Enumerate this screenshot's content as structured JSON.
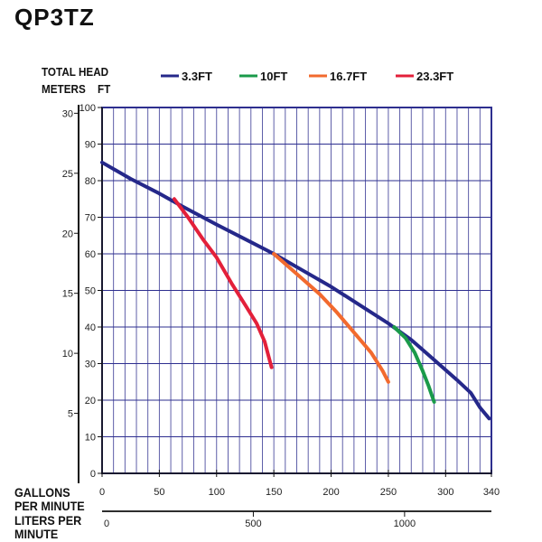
{
  "title": "QP3TZ",
  "chart_data": {
    "type": "line",
    "ylabel": "TOTAL HEAD",
    "ylabel_units": [
      "METERS",
      "FT"
    ],
    "xlabel": "GALLONS PER MINUTE",
    "xlabel2": "LITERS PER MINUTE",
    "xlim": [
      0,
      340
    ],
    "ylim": [
      0,
      100
    ],
    "grid": true,
    "legend_placement": "top",
    "x_ticks": [
      0,
      50,
      100,
      150,
      200,
      250,
      300,
      340
    ],
    "y_ticks": [
      0,
      10,
      20,
      30,
      40,
      50,
      60,
      70,
      80,
      90,
      100
    ],
    "meters_ticks": [
      5,
      10,
      15,
      20,
      25,
      30
    ],
    "liters_ticks": [
      0,
      500,
      1000
    ],
    "grid_color": "#2e2f8f",
    "series": [
      {
        "name": "3.3FT",
        "color": "#25288a",
        "points": [
          [
            0,
            85
          ],
          [
            25,
            80.5
          ],
          [
            50,
            76.5
          ],
          [
            70,
            73
          ],
          [
            100,
            68
          ],
          [
            125,
            64
          ],
          [
            150,
            60
          ],
          [
            175,
            55.5
          ],
          [
            200,
            51
          ],
          [
            225,
            46
          ],
          [
            250,
            41
          ],
          [
            270,
            36.5
          ],
          [
            290,
            31
          ],
          [
            310,
            25.5
          ],
          [
            322,
            22
          ],
          [
            330,
            18
          ],
          [
            338,
            15
          ]
        ]
      },
      {
        "name": "10FT",
        "color": "#1a9a4a",
        "points": [
          [
            255,
            40
          ],
          [
            265,
            37
          ],
          [
            273,
            33
          ],
          [
            280,
            28
          ],
          [
            285,
            24
          ],
          [
            290,
            19.5
          ]
        ]
      },
      {
        "name": "16.7FT",
        "color": "#f26a2e",
        "points": [
          [
            150,
            60
          ],
          [
            170,
            54.5
          ],
          [
            190,
            49
          ],
          [
            205,
            44
          ],
          [
            220,
            38.5
          ],
          [
            235,
            33
          ],
          [
            245,
            28
          ],
          [
            250,
            25
          ]
        ]
      },
      {
        "name": "23.3FT",
        "color": "#e3203a",
        "points": [
          [
            63,
            75
          ],
          [
            75,
            70
          ],
          [
            88,
            64
          ],
          [
            100,
            59
          ],
          [
            113,
            52
          ],
          [
            125,
            46
          ],
          [
            135,
            41
          ],
          [
            142,
            36
          ],
          [
            148,
            29
          ]
        ]
      }
    ]
  }
}
